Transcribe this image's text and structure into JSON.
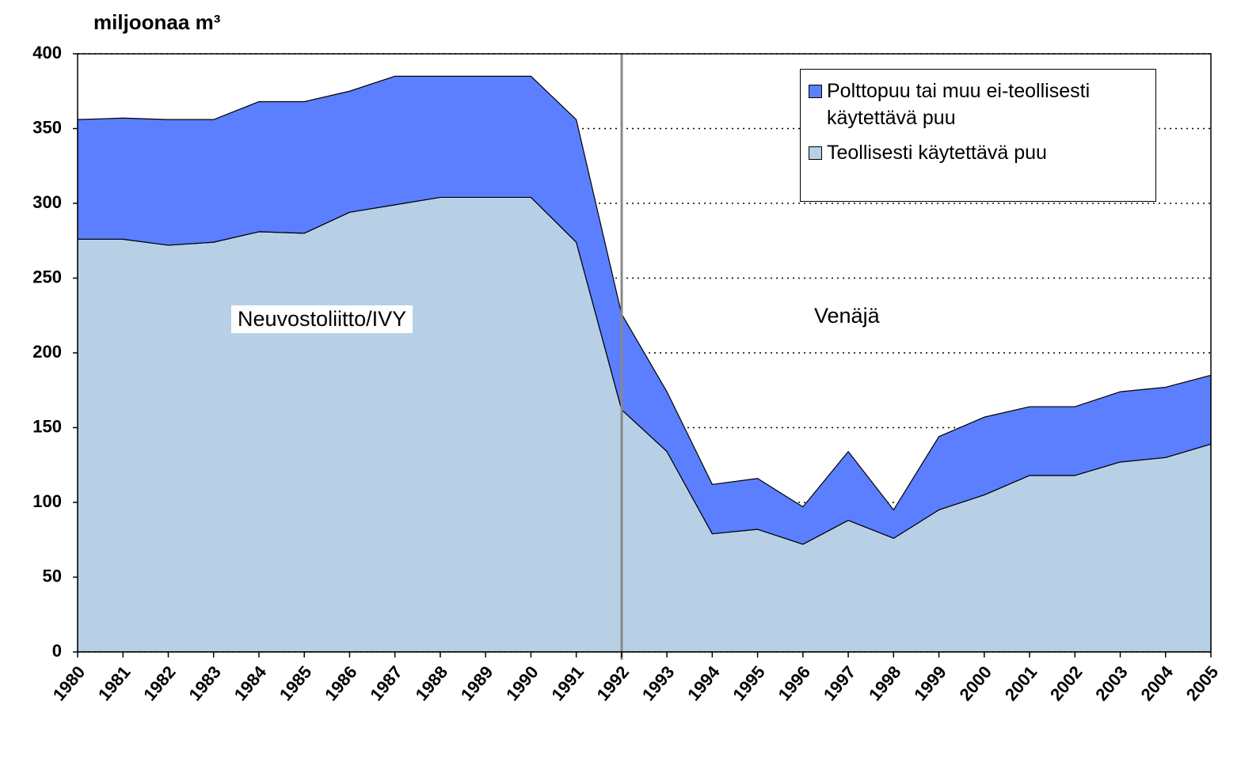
{
  "chart_data": {
    "type": "stacked_area",
    "y_axis_label": "miljoonaa m³",
    "categories": [
      "1980",
      "1981",
      "1982",
      "1983",
      "1984",
      "1985",
      "1986",
      "1987",
      "1988",
      "1989",
      "1990",
      "1991",
      "1992",
      "1993",
      "1994",
      "1995",
      "1996",
      "1997",
      "1998",
      "1999",
      "2000",
      "2001",
      "2002",
      "2003",
      "2004",
      "2005"
    ],
    "series": [
      {
        "name": "Teollisesti käytettävä puu",
        "color": "#b8d0e6",
        "values": [
          276,
          276,
          272,
          274,
          281,
          280,
          294,
          299,
          304,
          304,
          304,
          274,
          162,
          134,
          79,
          82,
          72,
          88,
          76,
          95,
          105,
          118,
          118,
          127,
          130,
          139
        ]
      },
      {
        "name": "Polttopuu tai muu ei-teollisesti käytettävä puu",
        "color": "#5b7fff",
        "values": [
          80,
          81,
          84,
          82,
          87,
          88,
          81,
          86,
          81,
          81,
          81,
          82,
          64,
          40,
          33,
          34,
          25,
          46,
          19,
          49,
          52,
          46,
          46,
          47,
          47,
          46
        ]
      }
    ],
    "ylim": [
      0,
      400
    ],
    "yticks": [
      0,
      50,
      100,
      150,
      200,
      250,
      300,
      350,
      400
    ],
    "grid": true,
    "annotations": [
      "Neuvostoliitto/IVY",
      "Venäjä"
    ]
  }
}
